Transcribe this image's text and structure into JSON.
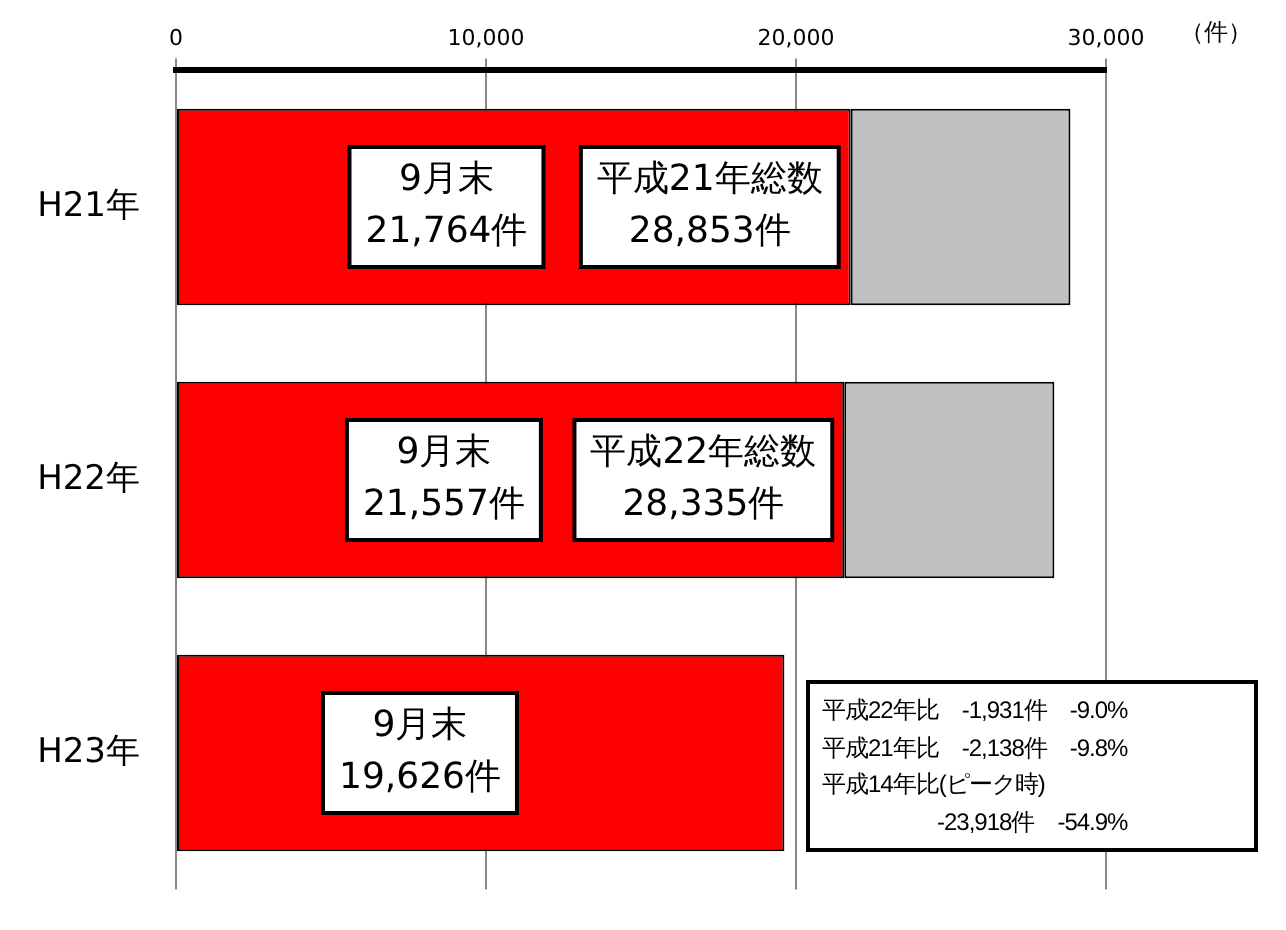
{
  "chart_data": {
    "type": "bar",
    "orientation": "horizontal",
    "stacked": true,
    "xlabel": "（件）",
    "categories": [
      "H21年",
      "H22年",
      "H23年"
    ],
    "series": [
      {
        "color": "#ff0000",
        "values": [
          21764,
          21557,
          19626
        ],
        "value_labels": [
          "9月末\n21,764件",
          "9月末\n21,557件",
          "9月末\n19,626件"
        ]
      },
      {
        "color": "#c0c0c0",
        "values": [
          7089,
          6778,
          null
        ],
        "value_labels": [
          "平成21年総数\n28,853件",
          "平成22年総数\n28,335件",
          null
        ]
      }
    ],
    "xlim": [
      0,
      30000
    ],
    "xticks": [
      {
        "value": 0,
        "label": "0"
      },
      {
        "value": 10000,
        "label": "10,000"
      },
      {
        "value": 20000,
        "label": "20,000"
      },
      {
        "value": 30000,
        "label": "30,000"
      }
    ],
    "grid": "x",
    "legend": false,
    "annotations": [
      "平成22年比　-1,931件　-9.0%\n平成21年比　-2,138件　-9.8%\n平成14年比(ピーク時)\n　　　　　-23,918件　-54.9%"
    ]
  }
}
